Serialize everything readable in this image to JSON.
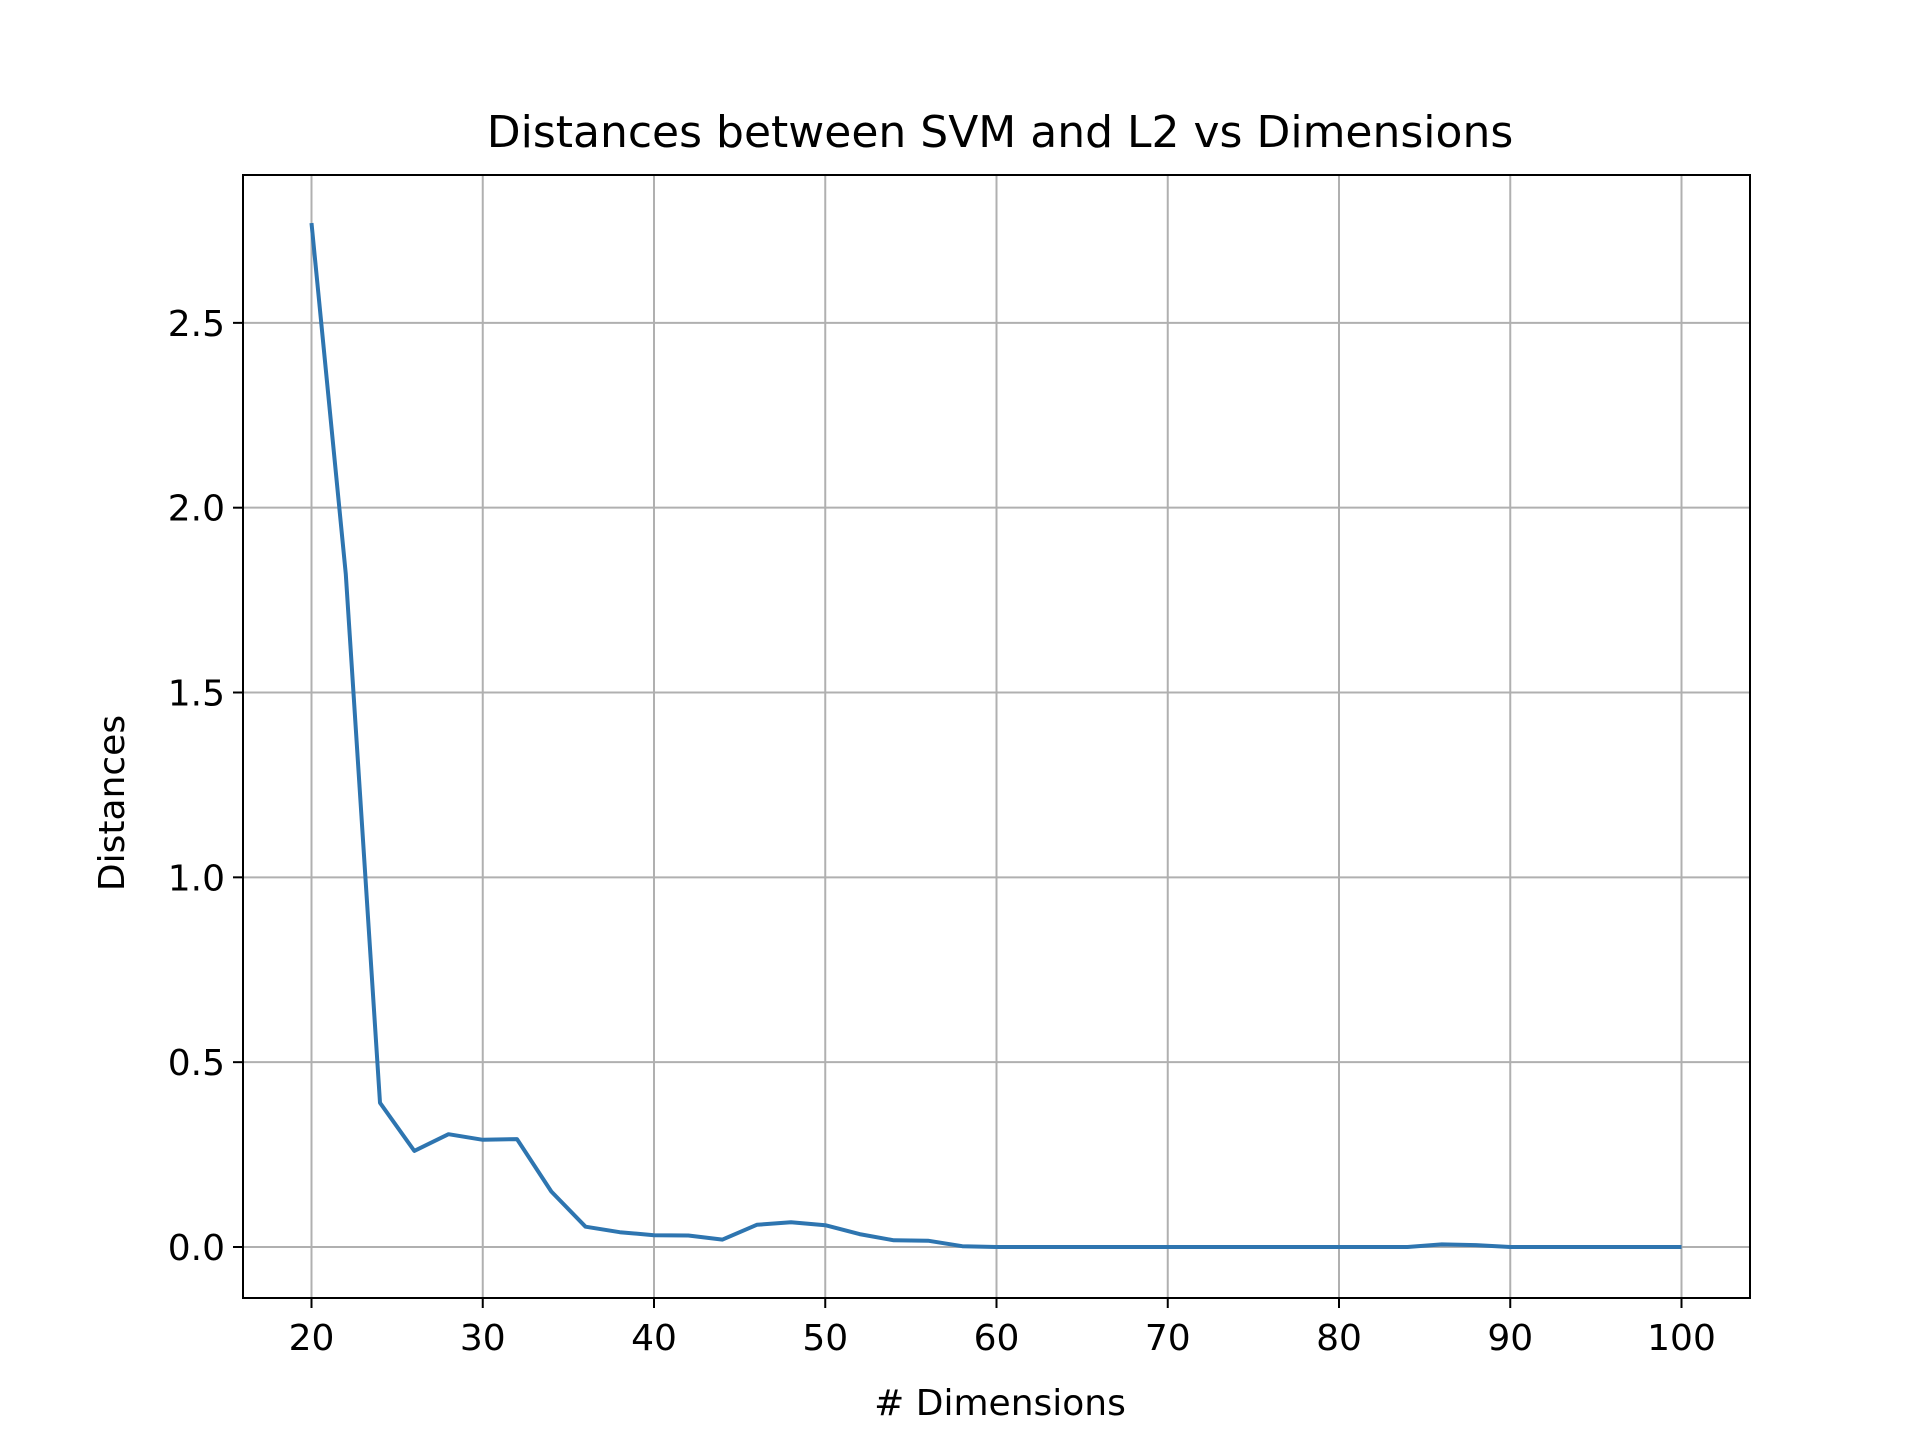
{
  "chart_data": {
    "type": "line",
    "title": "Distances between SVM and L2 vs Dimensions",
    "xlabel": "# Dimensions",
    "ylabel": "Distances",
    "xlim": [
      16,
      104
    ],
    "ylim": [
      -0.138,
      2.9
    ],
    "xticks": [
      20,
      30,
      40,
      50,
      60,
      70,
      80,
      90,
      100
    ],
    "yticks": [
      0.0,
      0.5,
      1.0,
      1.5,
      2.0,
      2.5
    ],
    "xtick_labels": [
      "20",
      "30",
      "40",
      "50",
      "60",
      "70",
      "80",
      "90",
      "100"
    ],
    "ytick_labels": [
      "0.0",
      "0.5",
      "1.0",
      "1.5",
      "2.0",
      "2.5"
    ],
    "grid": true,
    "legend": "none",
    "series": [
      {
        "color": "#2e75b0",
        "x": [
          20,
          22,
          24,
          26,
          28,
          30,
          32,
          34,
          36,
          38,
          40,
          42,
          44,
          46,
          48,
          50,
          52,
          54,
          56,
          58,
          60,
          62,
          64,
          66,
          68,
          70,
          72,
          74,
          76,
          78,
          80,
          82,
          84,
          86,
          88,
          90,
          92,
          94,
          96,
          98,
          100
        ],
        "y": [
          2.77,
          1.82,
          0.39,
          0.26,
          0.305,
          0.29,
          0.292,
          0.15,
          0.055,
          0.04,
          0.032,
          0.031,
          0.02,
          0.06,
          0.067,
          0.059,
          0.035,
          0.018,
          0.017,
          0.002,
          0.0,
          0.0,
          0.0,
          0.0,
          0.0,
          0.0,
          0.0,
          0.0,
          0.0,
          0.0,
          0.0,
          0.0,
          0.0,
          0.007,
          0.005,
          0.0,
          0.0,
          0.0,
          0.0,
          0.0,
          0.0
        ]
      }
    ]
  }
}
